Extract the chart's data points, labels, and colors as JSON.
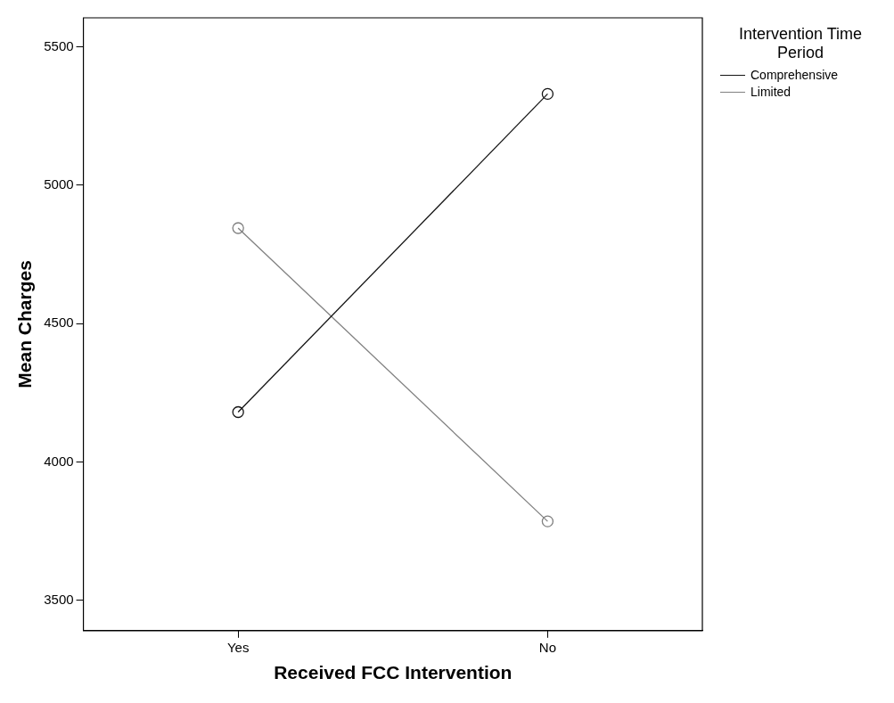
{
  "chart_data": {
    "type": "line",
    "xlabel": "Received FCC Intervention",
    "ylabel": "Mean Charges",
    "legend_title": "Intervention Time Period",
    "categories": [
      "Yes",
      "No"
    ],
    "series": [
      {
        "name": "Comprehensive",
        "color": "#141414",
        "values": [
          4180,
          5330
        ]
      },
      {
        "name": "Limited",
        "color": "#808080",
        "values": [
          4845,
          3785
        ]
      }
    ],
    "ylim": [
      3390,
      5605
    ],
    "yticks": [
      3500,
      4000,
      4500,
      5000,
      5500
    ],
    "grid": false,
    "legend": "right",
    "marker": "circle",
    "line_style": "solid"
  }
}
